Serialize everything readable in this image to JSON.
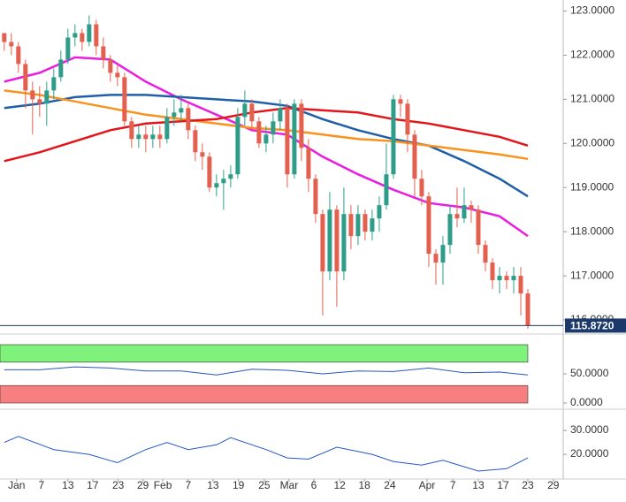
{
  "chart_data": [
    {
      "type": "candlestick",
      "up_color": "#2f9c8a",
      "down_color": "#e2604d",
      "open": [
        122.5,
        122.3,
        122.2,
        121.8,
        121.2,
        121.0,
        120.9,
        121.2,
        121.5,
        121.9,
        122.4,
        122.5,
        122.3,
        122.7,
        122.2,
        121.9,
        121.6,
        121.5,
        120.5,
        120.1,
        120.2,
        120.1,
        120.2,
        120.1,
        120.6,
        120.7,
        120.8,
        120.3,
        119.8,
        119.7,
        119.0,
        119.1,
        119.2,
        119.3,
        120.6,
        120.9,
        120.5,
        120.0,
        120.2,
        120.5,
        120.8,
        119.3,
        120.9,
        119.9,
        119.2,
        118.4,
        117.1,
        118.5,
        117.1,
        118.4,
        117.9,
        118.4,
        118.0,
        118.3,
        118.6,
        119.3,
        121.0,
        120.9,
        120.2,
        119.2,
        118.8,
        117.5,
        117.3,
        117.7,
        118.4,
        118.3,
        118.6,
        118.5,
        117.7,
        117.3,
        116.9,
        117.0,
        116.9,
        117.0,
        116.6
      ],
      "high": [
        122.5,
        122.5,
        122.3,
        121.9,
        121.4,
        121.3,
        121.4,
        121.7,
        122.1,
        122.6,
        122.7,
        122.6,
        122.9,
        122.8,
        122.4,
        122.0,
        121.8,
        121.6,
        120.6,
        120.4,
        120.4,
        120.4,
        120.4,
        120.8,
        121.0,
        121.1,
        120.9,
        120.4,
        120.0,
        119.8,
        119.3,
        119.4,
        119.5,
        120.8,
        121.2,
        121.0,
        120.6,
        120.4,
        120.7,
        121.0,
        120.9,
        121.0,
        121.0,
        120.1,
        119.3,
        118.5,
        118.9,
        118.6,
        119.0,
        118.6,
        118.6,
        118.5,
        118.5,
        118.8,
        120.0,
        121.1,
        121.1,
        121.0,
        120.3,
        119.4,
        118.9,
        117.6,
        117.9,
        118.6,
        119.0,
        119.0,
        118.7,
        118.6,
        117.8,
        117.4,
        117.2,
        117.1,
        117.2,
        117.2,
        116.7
      ],
      "low": [
        122.1,
        122.0,
        121.6,
        120.8,
        120.2,
        120.6,
        120.4,
        121.0,
        121.4,
        121.8,
        122.2,
        122.1,
        122.2,
        122.0,
        121.7,
        121.4,
        121.3,
        120.4,
        119.9,
        119.9,
        119.8,
        119.9,
        119.9,
        120.0,
        120.4,
        120.5,
        120.1,
        119.6,
        119.4,
        118.9,
        118.8,
        118.5,
        119.0,
        119.2,
        120.4,
        120.3,
        119.9,
        119.8,
        120.0,
        120.3,
        119.0,
        119.2,
        119.6,
        118.9,
        118.2,
        116.1,
        116.9,
        116.3,
        116.9,
        117.6,
        117.7,
        117.8,
        117.8,
        118.0,
        118.5,
        119.2,
        120.6,
        119.8,
        118.8,
        118.6,
        117.2,
        116.8,
        116.8,
        117.5,
        118.1,
        118.2,
        118.2,
        117.5,
        117.1,
        116.7,
        116.6,
        116.7,
        116.6,
        116.1,
        115.8
      ],
      "close": [
        122.3,
        122.2,
        121.8,
        121.2,
        121.0,
        120.9,
        121.2,
        121.5,
        121.9,
        122.4,
        122.5,
        122.3,
        122.7,
        122.2,
        121.9,
        121.6,
        121.5,
        120.5,
        120.1,
        120.2,
        120.1,
        120.2,
        120.1,
        120.6,
        120.7,
        120.8,
        120.3,
        119.8,
        119.7,
        119.0,
        119.1,
        119.2,
        119.3,
        120.6,
        120.9,
        120.5,
        120.0,
        120.2,
        120.5,
        120.8,
        119.3,
        120.9,
        119.9,
        119.2,
        118.4,
        117.1,
        118.5,
        117.1,
        118.4,
        117.9,
        118.4,
        118.0,
        118.3,
        118.6,
        119.3,
        121.0,
        120.9,
        120.2,
        119.2,
        118.8,
        117.5,
        117.3,
        117.7,
        118.4,
        118.3,
        118.6,
        118.5,
        117.7,
        117.3,
        116.9,
        117.0,
        116.9,
        117.0,
        116.6,
        115.87
      ],
      "series": [
        {
          "color": "#e81ee0",
          "x": [
            0,
            5,
            10,
            15,
            20,
            25,
            30,
            35,
            40,
            45,
            50,
            55,
            60,
            65,
            70,
            74
          ],
          "values": [
            121.4,
            121.6,
            121.95,
            121.9,
            121.4,
            121.0,
            120.65,
            120.3,
            120.2,
            119.7,
            119.3,
            118.95,
            118.65,
            118.55,
            118.35,
            117.9
          ]
        },
        {
          "color": "#1f5fa8",
          "x": [
            0,
            5,
            10,
            15,
            20,
            25,
            30,
            35,
            40,
            45,
            50,
            55,
            60,
            65,
            70,
            74
          ],
          "values": [
            120.8,
            120.9,
            121.05,
            121.1,
            121.1,
            121.05,
            121.0,
            120.95,
            120.85,
            120.55,
            120.3,
            120.1,
            119.95,
            119.6,
            119.2,
            118.8
          ]
        },
        {
          "color": "#f7931e",
          "x": [
            0,
            5,
            10,
            15,
            20,
            25,
            30,
            35,
            40,
            45,
            50,
            55,
            60,
            65,
            70,
            74
          ],
          "values": [
            121.2,
            121.1,
            120.95,
            120.8,
            120.65,
            120.55,
            120.45,
            120.35,
            120.3,
            120.2,
            120.1,
            120.05,
            119.95,
            119.85,
            119.75,
            119.65
          ]
        },
        {
          "color": "#e3151b",
          "x": [
            0,
            5,
            10,
            15,
            20,
            25,
            30,
            35,
            40,
            45,
            50,
            55,
            60,
            65,
            70,
            74
          ],
          "values": [
            119.6,
            119.8,
            120.05,
            120.3,
            120.45,
            120.5,
            120.55,
            120.7,
            120.8,
            120.75,
            120.7,
            120.55,
            120.45,
            120.3,
            120.15,
            119.95
          ]
        }
      ],
      "last_price": {
        "value": 115.872,
        "label": "115.8720"
      },
      "xlim": [
        -0.6,
        79
      ],
      "ylim": [
        115.74,
        123.25
      ],
      "yticks": [
        {
          "value": 116,
          "label": "116.0000"
        },
        {
          "value": 117,
          "label": "117.0000"
        },
        {
          "value": 118,
          "label": "118.0000"
        },
        {
          "value": 119,
          "label": "119.0000"
        },
        {
          "value": 120,
          "label": "120.0000"
        },
        {
          "value": 121,
          "label": "121.0000"
        },
        {
          "value": 122,
          "label": "122.0000"
        },
        {
          "value": 123,
          "label": "123.0000"
        }
      ]
    },
    {
      "type": "line",
      "color": "#2457c5",
      "x": [
        0,
        5,
        10,
        15,
        20,
        25,
        30,
        35,
        40,
        45,
        50,
        55,
        60,
        65,
        70,
        74
      ],
      "values": [
        57,
        57,
        62,
        60,
        55,
        55,
        48,
        58,
        56,
        50,
        55,
        54,
        60,
        52,
        53,
        48
      ],
      "upper_band": [
        70,
        100
      ],
      "upper_color": "#7ef27a",
      "lower_band": [
        0,
        30
      ],
      "lower_color": "#f87f7f",
      "xlim": [
        -0.6,
        79
      ],
      "ylim": [
        0,
        100
      ],
      "yticks": [
        {
          "value": 0,
          "label": "0.0000"
        },
        {
          "value": 50,
          "label": "50.0000"
        }
      ]
    },
    {
      "type": "line",
      "color": "#2457c5",
      "x": [
        0,
        2,
        7,
        12,
        16,
        20,
        23,
        26,
        30,
        32,
        37,
        40,
        43,
        47,
        52,
        55,
        59,
        62,
        67,
        71,
        74
      ],
      "values": [
        25,
        27.5,
        22,
        20,
        16.5,
        22,
        25,
        22,
        24,
        27,
        22,
        18.5,
        18,
        23,
        20,
        17,
        15.5,
        17.5,
        13,
        14,
        18.5
      ],
      "xlim": [
        -0.6,
        79
      ],
      "ylim": [
        10.4,
        37.8
      ],
      "yticks": [
        {
          "value": 20,
          "label": "20.0000"
        },
        {
          "value": 30,
          "label": "30.0000"
        }
      ],
      "xticks": [
        {
          "value": 1.75,
          "label": "Jan"
        },
        {
          "value": 5.25,
          "label": "7"
        },
        {
          "value": 9,
          "label": "13"
        },
        {
          "value": 12.5,
          "label": "17"
        },
        {
          "value": 16.1,
          "label": "23"
        },
        {
          "value": 19.6,
          "label": "29"
        },
        {
          "value": 22.4,
          "label": "Feb"
        },
        {
          "value": 26,
          "label": "7"
        },
        {
          "value": 29.5,
          "label": "13"
        },
        {
          "value": 33.1,
          "label": "19"
        },
        {
          "value": 36.75,
          "label": "25"
        },
        {
          "value": 40.25,
          "label": "Mar"
        },
        {
          "value": 43.75,
          "label": "6"
        },
        {
          "value": 47.4,
          "label": "12"
        },
        {
          "value": 50.9,
          "label": "18"
        },
        {
          "value": 54.5,
          "label": "24"
        },
        {
          "value": 59.75,
          "label": "Apr"
        },
        {
          "value": 63.4,
          "label": "7"
        },
        {
          "value": 67,
          "label": "13"
        },
        {
          "value": 70.5,
          "label": "17"
        },
        {
          "value": 74,
          "label": "23"
        },
        {
          "value": 77.6,
          "label": "29"
        }
      ]
    }
  ]
}
